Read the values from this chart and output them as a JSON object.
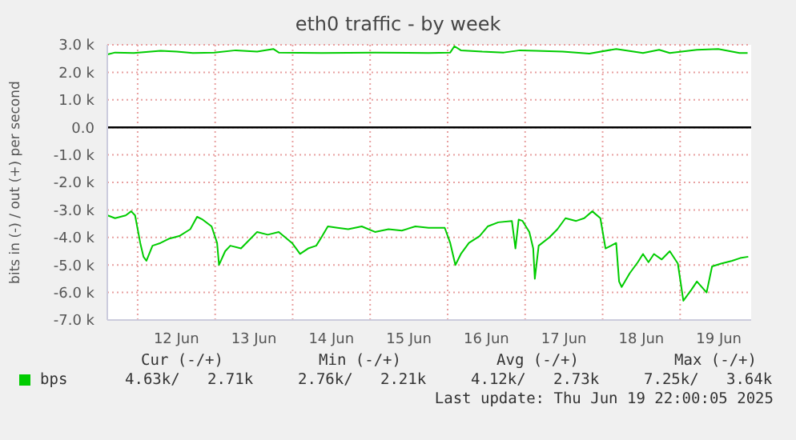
{
  "chart_data": {
    "type": "line",
    "title": "eth0 traffic - by week",
    "ylabel": "bits in (-) / out (+) per second",
    "xlim": [
      "2025-06-11T14:36",
      "2025-06-19T22:00"
    ],
    "xticks": [
      {
        "value": "2025-06-12T00:00",
        "label": null
      },
      {
        "value": "2025-06-12T12:00",
        "label": "12 Jun"
      },
      {
        "value": "2025-06-13T00:00",
        "label": null
      },
      {
        "value": "2025-06-13T12:00",
        "label": "13 Jun"
      },
      {
        "value": "2025-06-14T00:00",
        "label": null
      },
      {
        "value": "2025-06-14T12:00",
        "label": "14 Jun"
      },
      {
        "value": "2025-06-15T00:00",
        "label": null
      },
      {
        "value": "2025-06-15T12:00",
        "label": "15 Jun"
      },
      {
        "value": "2025-06-16T00:00",
        "label": null
      },
      {
        "value": "2025-06-16T12:00",
        "label": "16 Jun"
      },
      {
        "value": "2025-06-17T00:00",
        "label": null
      },
      {
        "value": "2025-06-17T12:00",
        "label": "17 Jun"
      },
      {
        "value": "2025-06-18T00:00",
        "label": null
      },
      {
        "value": "2025-06-18T12:00",
        "label": "18 Jun"
      },
      {
        "value": "2025-06-19T00:00",
        "label": null
      },
      {
        "value": "2025-06-19T12:00",
        "label": "19 Jun"
      }
    ],
    "ylim": [
      -7000,
      3000
    ],
    "yticks": [
      {
        "value": -7000,
        "label": "-7.0 k"
      },
      {
        "value": -6000,
        "label": "-6.0 k"
      },
      {
        "value": -5000,
        "label": "-5.0 k"
      },
      {
        "value": -4000,
        "label": "-4.0 k"
      },
      {
        "value": -3000,
        "label": "-3.0 k"
      },
      {
        "value": -2000,
        "label": "-2.0 k"
      },
      {
        "value": -1000,
        "label": "-1.0 k"
      },
      {
        "value": 0,
        "label": "0.0"
      },
      {
        "value": 1000,
        "label": "1.0 k"
      },
      {
        "value": 2000,
        "label": "2.0 k"
      },
      {
        "value": 3000,
        "label": "3.0 k"
      }
    ],
    "grid": true,
    "legend": "bottom left",
    "marker": "none",
    "line_style": "solid",
    "ref_lines": [
      {
        "axis": "y",
        "value": 0,
        "color": "#000000"
      }
    ],
    "series": [
      {
        "name": "bps",
        "color": "#00cc00",
        "x": [
          "2025-06-11T14:42",
          "2025-06-11T17:00",
          "2025-06-11T20:18",
          "2025-06-11T22:00",
          "2025-06-11T23:12",
          "2025-06-12T00:48",
          "2025-06-12T01:48",
          "2025-06-12T02:42",
          "2025-06-12T04:36",
          "2025-06-12T07:06",
          "2025-06-12T09:36",
          "2025-06-12T12:54",
          "2025-06-12T16:18",
          "2025-06-12T18:24",
          "2025-06-12T20:06",
          "2025-06-12T22:54",
          "2025-06-13T00:36",
          "2025-06-13T01:12",
          "2025-06-13T03:06",
          "2025-06-13T04:42",
          "2025-06-13T08:00",
          "2025-06-13T10:30",
          "2025-06-13T13:00",
          "2025-06-13T16:18",
          "2025-06-13T19:42",
          "2025-06-13T23:48",
          "2025-06-14T02:18",
          "2025-06-14T04:48",
          "2025-06-14T07:18",
          "2025-06-14T08:54",
          "2025-06-14T10:54",
          "2025-06-14T13:54",
          "2025-06-14T17:12",
          "2025-06-14T21:24",
          "2025-06-15T01:30",
          "2025-06-15T05:42",
          "2025-06-15T09:48",
          "2025-06-15T14:00",
          "2025-06-15T18:06",
          "2025-06-15T23:06",
          "2025-06-16T00:48",
          "2025-06-16T02:24",
          "2025-06-16T04:06",
          "2025-06-16T06:36",
          "2025-06-16T09:54",
          "2025-06-16T12:24",
          "2025-06-16T15:42",
          "2025-06-16T19:54",
          "2025-06-16T21:00",
          "2025-06-16T22:00",
          "2025-06-16T23:12",
          "2025-06-17T01:18",
          "2025-06-17T02:30",
          "2025-06-17T03:00",
          "2025-06-17T04:12",
          "2025-06-17T07:30",
          "2025-06-17T10:00",
          "2025-06-17T12:30",
          "2025-06-17T15:48",
          "2025-06-17T18:18",
          "2025-06-17T20:48",
          "2025-06-17T23:18",
          "2025-06-18T00:54",
          "2025-06-18T02:36",
          "2025-06-18T04:12",
          "2025-06-18T05:06",
          "2025-06-18T05:54",
          "2025-06-18T08:24",
          "2025-06-18T10:54",
          "2025-06-18T12:30",
          "2025-06-18T14:12",
          "2025-06-18T15:54",
          "2025-06-18T18:18",
          "2025-06-18T20:48",
          "2025-06-18T23:18",
          "2025-06-19T01:00",
          "2025-06-19T03:30",
          "2025-06-19T05:12",
          "2025-06-19T08:12",
          "2025-06-19T09:54",
          "2025-06-19T12:42",
          "2025-06-19T16:06",
          "2025-06-19T18:36",
          "2025-06-19T21:06"
        ],
        "values": [
          -3200,
          -3300,
          -3200,
          -3050,
          -3200,
          -4200,
          -4700,
          -4850,
          -4300,
          -4200,
          -4050,
          -3950,
          -3700,
          -3250,
          -3350,
          -3600,
          -4200,
          -5000,
          -4500,
          -4300,
          -4400,
          -4100,
          -3800,
          -3900,
          -3800,
          -4200,
          -4600,
          -4400,
          -4300,
          -4000,
          -3600,
          -3650,
          -3700,
          -3600,
          -3800,
          -3700,
          -3750,
          -3600,
          -3650,
          -3650,
          -4200,
          -5000,
          -4600,
          -4200,
          -3950,
          -3600,
          -3450,
          -3400,
          -4400,
          -3350,
          -3400,
          -3800,
          -4400,
          -5500,
          -4300,
          -4000,
          -3700,
          -3300,
          -3400,
          -3300,
          -3050,
          -3300,
          -4400,
          -4300,
          -4200,
          -5600,
          -5800,
          -5300,
          -4900,
          -4600,
          -4900,
          -4600,
          -4800,
          -4500,
          -4950,
          -6300,
          -5900,
          -5600,
          -6000,
          -5050,
          -4950,
          -4850,
          -4750,
          -4700
        ]
      },
      {
        "color": "#00cc00",
        "x": [
          "2025-06-11T14:42",
          "2025-06-11T17:00",
          "2025-06-11T22:48",
          "2025-06-12T07:06",
          "2025-06-12T12:06",
          "2025-06-12T17:06",
          "2025-06-12T23:42",
          "2025-06-13T06:24",
          "2025-06-13T13:00",
          "2025-06-13T18:00",
          "2025-06-13T19:42",
          "2025-06-14T08:54",
          "2025-06-15T01:30",
          "2025-06-15T18:06",
          "2025-06-16T00:48",
          "2025-06-16T02:06",
          "2025-06-16T04:06",
          "2025-06-16T10:42",
          "2025-06-16T17:24",
          "2025-06-16T22:24",
          "2025-06-17T03:18",
          "2025-06-17T11:36",
          "2025-06-17T19:54",
          "2025-06-18T04:12",
          "2025-06-18T12:30",
          "2025-06-18T17:30",
          "2025-06-18T20:48",
          "2025-06-19T05:12",
          "2025-06-19T11:48",
          "2025-06-19T18:24",
          "2025-06-19T20:54"
        ],
        "values": [
          2650,
          2720,
          2700,
          2780,
          2750,
          2700,
          2720,
          2800,
          2750,
          2850,
          2720,
          2700,
          2720,
          2700,
          2720,
          2950,
          2800,
          2750,
          2720,
          2800,
          2780,
          2750,
          2680,
          2850,
          2700,
          2820,
          2700,
          2820,
          2850,
          2700,
          2700
        ]
      }
    ],
    "annotations": [
      "Cur (-/+)",
      "Min (-/+)",
      "Avg (-/+)",
      "Max (-/+)",
      "4.63k/   2.71k",
      "2.76k/   2.21k",
      "4.12k/   2.73k",
      "7.25k/   3.64k",
      "Last update: Thu Jun 19 22:00:05 2025"
    ]
  }
}
